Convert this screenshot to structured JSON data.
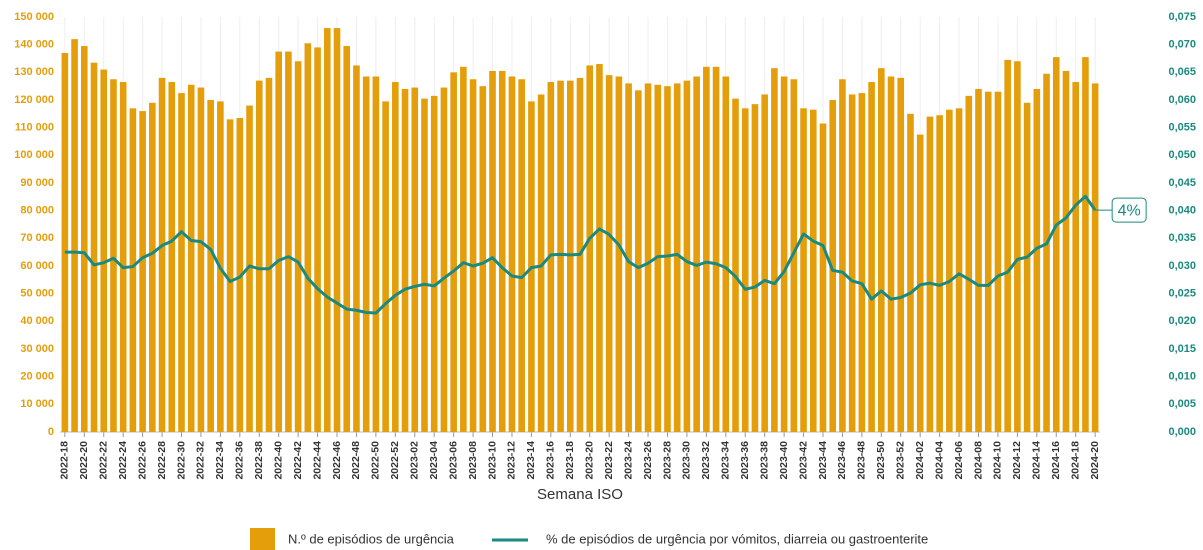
{
  "chart_data": {
    "type": "bar_line",
    "x_label": "Semana ISO",
    "categories": [
      "2022-18",
      null,
      "2022-20",
      null,
      "2022-22",
      null,
      "2022-24",
      null,
      "2022-26",
      null,
      "2022-28",
      null,
      "2022-30",
      null,
      "2022-32",
      null,
      "2022-34",
      null,
      "2022-36",
      null,
      "2022-38",
      null,
      "2022-40",
      null,
      "2022-42",
      null,
      "2022-44",
      null,
      "2022-46",
      null,
      "2022-48",
      null,
      "2022-50",
      null,
      "2022-52",
      null,
      "2023-02",
      null,
      "2023-04",
      null,
      "2023-06",
      null,
      "2023-08",
      null,
      "2023-10",
      null,
      "2023-12",
      null,
      "2023-14",
      null,
      "2023-16",
      null,
      "2023-18",
      null,
      "2023-20",
      null,
      "2023-22",
      null,
      "2023-24",
      null,
      "2023-26",
      null,
      "2023-28",
      null,
      "2023-30",
      null,
      "2023-32",
      null,
      "2023-34",
      null,
      "2023-36",
      null,
      "2023-38",
      null,
      "2023-40",
      null,
      "2023-42",
      null,
      "2023-44",
      null,
      "2023-46",
      null,
      "2023-48",
      null,
      "2023-50",
      null,
      "2023-52",
      null,
      "2024-02",
      null,
      "2024-04",
      null,
      "2024-06",
      null,
      "2024-08",
      null,
      "2024-10",
      null,
      "2024-12",
      null,
      "2024-14",
      null,
      "2024-16",
      null,
      "2024-18",
      null,
      "2024-20"
    ],
    "series": [
      {
        "name": "N.º de episódios de urgência",
        "type": "bar",
        "color": "#E59E0B",
        "values": [
          137000,
          142000,
          139500,
          133500,
          131000,
          127500,
          126500,
          117000,
          116000,
          119000,
          128000,
          126500,
          122500,
          125500,
          124500,
          120000,
          119500,
          113000,
          113500,
          118000,
          127000,
          128000,
          137500,
          137500,
          134000,
          140500,
          139000,
          146000,
          146000,
          139500,
          132500,
          128500,
          128500,
          119500,
          126500,
          124000,
          124500,
          120500,
          121500,
          124500,
          130000,
          132000,
          127500,
          125000,
          130500,
          130500,
          128500,
          127500,
          119500,
          122000,
          126500,
          127000,
          127000,
          128000,
          132500,
          133000,
          129000,
          128500,
          126000,
          123500,
          126000,
          125500,
          125000,
          126000,
          127000,
          128500,
          132000,
          132000,
          128500,
          120500,
          117000,
          118500,
          122000,
          131500,
          128500,
          127500,
          117000,
          116500,
          111500,
          120000,
          127500,
          122000,
          122500,
          126500,
          131500,
          128500,
          128000,
          115000,
          107500,
          114000,
          114500,
          116500,
          117000,
          121500,
          124000,
          123000,
          123000,
          134500,
          134000,
          119000,
          124000,
          129500,
          135500,
          130500,
          126500,
          135500,
          126000
        ]
      },
      {
        "name": "% de episódios de urgência por vómitos, diarreia ou gastroenterite",
        "type": "line",
        "color": "#1A8A80",
        "axis": "y2",
        "values": [
          0.0325,
          0.0325,
          0.0324,
          0.0302,
          0.0306,
          0.0314,
          0.0297,
          0.0299,
          0.0315,
          0.0323,
          0.0337,
          0.0345,
          0.0362,
          0.0346,
          0.0344,
          0.033,
          0.0296,
          0.0272,
          0.028,
          0.03,
          0.0295,
          0.0295,
          0.031,
          0.0317,
          0.0307,
          0.0278,
          0.0259,
          0.0244,
          0.0233,
          0.0222,
          0.022,
          0.0216,
          0.0215,
          0.0232,
          0.0247,
          0.0258,
          0.0263,
          0.0267,
          0.0264,
          0.0278,
          0.0291,
          0.0306,
          0.03,
          0.0305,
          0.0315,
          0.0297,
          0.0282,
          0.0279,
          0.0297,
          0.03,
          0.032,
          0.0321,
          0.032,
          0.0321,
          0.035,
          0.0367,
          0.0357,
          0.0338,
          0.0308,
          0.0297,
          0.0305,
          0.0317,
          0.0318,
          0.0321,
          0.0308,
          0.0301,
          0.0307,
          0.0304,
          0.0297,
          0.0281,
          0.0258,
          0.0262,
          0.0274,
          0.0268,
          0.029,
          0.0324,
          0.0358,
          0.0345,
          0.0337,
          0.0292,
          0.0289,
          0.0273,
          0.0268,
          0.024,
          0.0255,
          0.024,
          0.0243,
          0.0251,
          0.0266,
          0.0269,
          0.0265,
          0.0272,
          0.0286,
          0.0276,
          0.0265,
          0.0265,
          0.0282,
          0.0289,
          0.0312,
          0.0316,
          0.0332,
          0.034,
          0.0374,
          0.0387,
          0.041,
          0.0426,
          0.0401
        ],
        "end_label": "4%"
      }
    ],
    "ylim": [
      0,
      150000
    ],
    "yticks": [
      0,
      {
        "value": 10000,
        "label": "10 000"
      },
      {
        "value": 20000,
        "label": "20 000"
      },
      {
        "value": 30000,
        "label": "30 000"
      },
      {
        "value": 40000,
        "label": "40 000"
      },
      {
        "value": 50000,
        "label": "50 000"
      },
      {
        "value": 60000,
        "label": "60 000"
      },
      {
        "value": 70000,
        "label": "70 000"
      },
      {
        "value": 80000,
        "label": "80 000"
      },
      {
        "value": 90000,
        "label": "90 000"
      },
      {
        "value": 100000,
        "label": "100 000"
      },
      {
        "value": 110000,
        "label": "110 000"
      },
      {
        "value": 120000,
        "label": "120 000"
      },
      {
        "value": 130000,
        "label": "130 000"
      },
      {
        "value": 140000,
        "label": "140 000"
      },
      {
        "value": 150000,
        "label": "150 000"
      }
    ],
    "y2lim": [
      0,
      0.075
    ],
    "y2ticks": [
      {
        "value": 0,
        "label": "0,000"
      },
      {
        "value": 0.005,
        "label": "0,005"
      },
      {
        "value": 0.01,
        "label": "0,010"
      },
      {
        "value": 0.015,
        "label": "0,015"
      },
      {
        "value": 0.02,
        "label": "0,020"
      },
      {
        "value": 0.025,
        "label": "0,025"
      },
      {
        "value": 0.03,
        "label": "0,030"
      },
      {
        "value": 0.035,
        "label": "0,035"
      },
      {
        "value": 0.04,
        "label": "0,040"
      },
      {
        "value": 0.045,
        "label": "0,045"
      },
      {
        "value": 0.05,
        "label": "0,050"
      },
      {
        "value": 0.055,
        "label": "0,055"
      },
      {
        "value": 0.06,
        "label": "0,060"
      },
      {
        "value": 0.065,
        "label": "0,065"
      },
      {
        "value": 0.07,
        "label": "0,070"
      },
      {
        "value": 0.075,
        "label": "0,075"
      }
    ],
    "legend": "bottom"
  }
}
